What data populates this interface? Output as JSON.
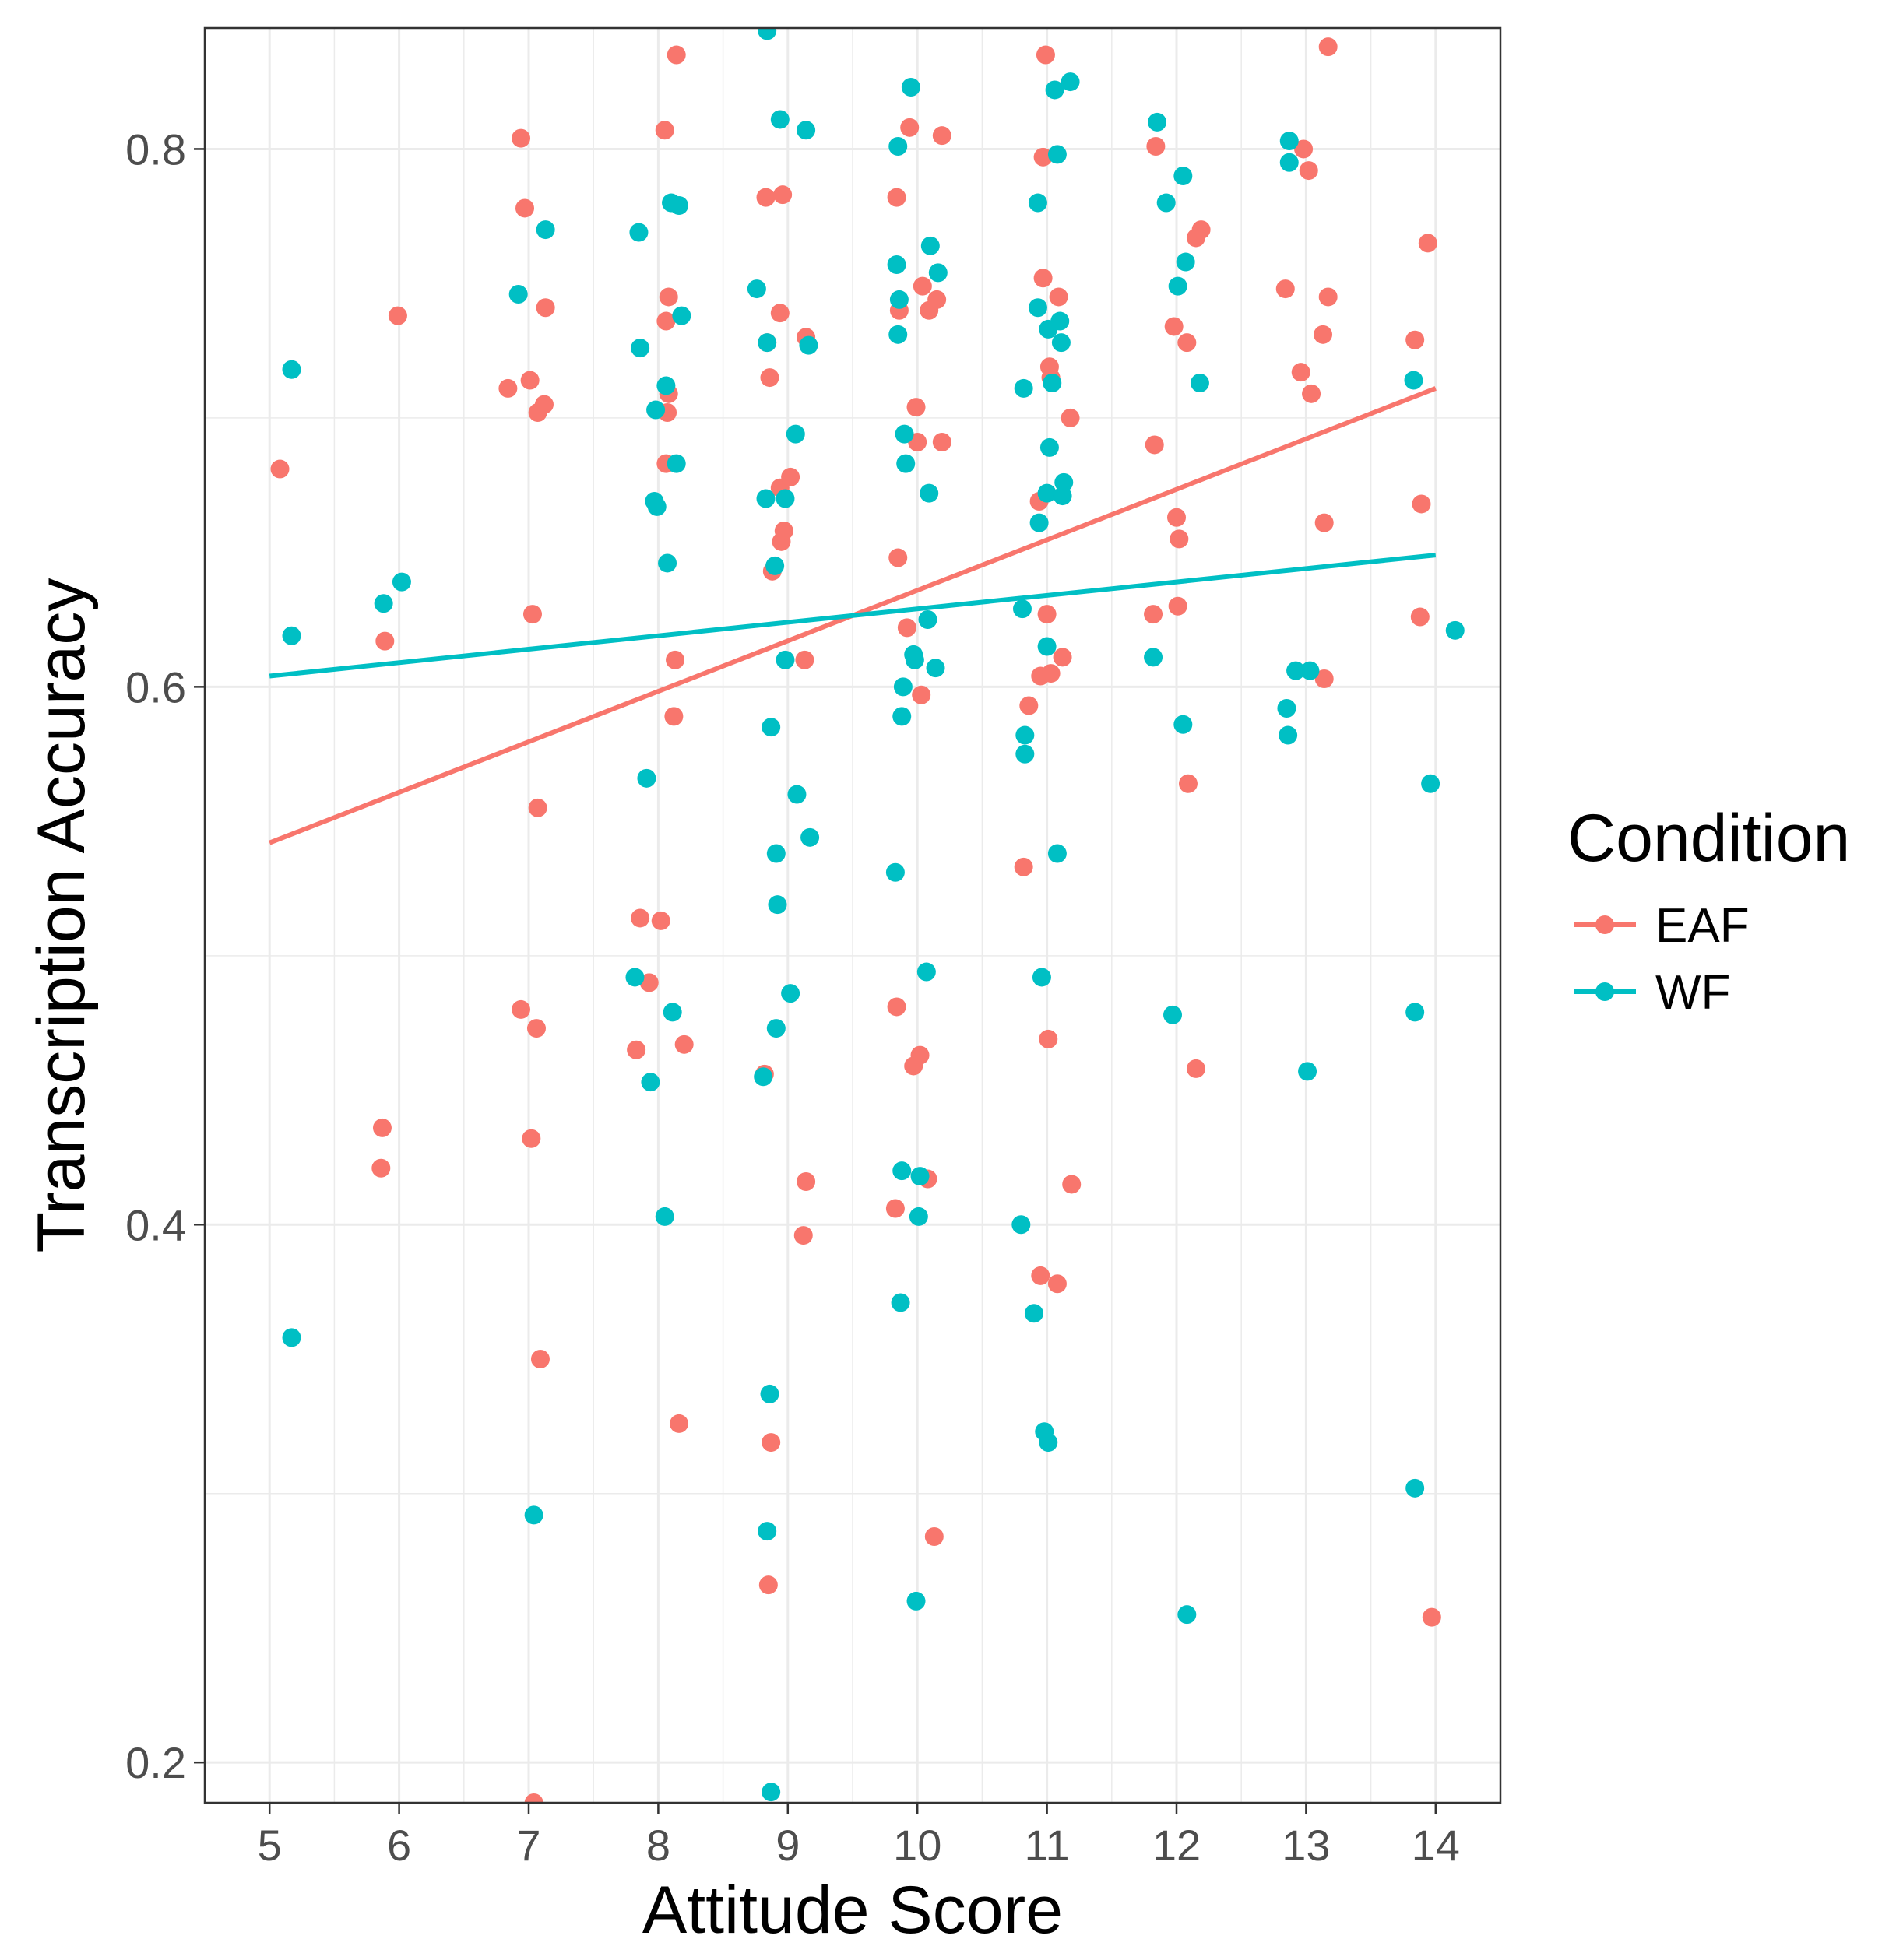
{
  "chart_data": {
    "type": "scatter",
    "title": "",
    "xlabel": "Attitude Score",
    "ylabel": "Transcription Accuracy",
    "xlim": [
      4.5,
      14.5
    ],
    "ylim": [
      0.185,
      0.845
    ],
    "x_ticks": [
      5,
      6,
      7,
      8,
      9,
      10,
      11,
      12,
      13,
      14
    ],
    "x_tick_labels": [
      "5",
      "6",
      "7",
      "8",
      "9",
      "10",
      "11",
      "12",
      "13",
      "14"
    ],
    "y_ticks": [
      0.2,
      0.4,
      0.6,
      0.8
    ],
    "y_tick_labels": [
      "0.2",
      "0.4",
      "0.6",
      "0.8"
    ],
    "grid": true,
    "legend": {
      "title": "Condition",
      "position": "right",
      "entries": [
        {
          "label": "EAF",
          "color": "#F8766D"
        },
        {
          "label": "WF",
          "color": "#00BFC4"
        }
      ]
    },
    "series": [
      {
        "name": "EAF",
        "color": "#F8766D",
        "trend": {
          "x": [
            5,
            14
          ],
          "y": [
            0.542,
            0.711
          ]
        },
        "points": [
          [
            5.08,
            0.681
          ],
          [
            5.86,
            0.421
          ],
          [
            5.87,
            0.436
          ],
          [
            5.89,
            0.617
          ],
          [
            5.99,
            0.738
          ],
          [
            6.84,
            0.711
          ],
          [
            6.94,
            0.48
          ],
          [
            6.94,
            0.804
          ],
          [
            6.97,
            0.778
          ],
          [
            7.01,
            0.714
          ],
          [
            7.02,
            0.432
          ],
          [
            7.03,
            0.627
          ],
          [
            7.04,
            0.185
          ],
          [
            7.06,
            0.473
          ],
          [
            7.07,
            0.702
          ],
          [
            7.07,
            0.555
          ],
          [
            7.09,
            0.35
          ],
          [
            7.12,
            0.705
          ],
          [
            7.13,
            0.741
          ],
          [
            7.83,
            0.465
          ],
          [
            7.86,
            0.514
          ],
          [
            7.93,
            0.49
          ],
          [
            8.02,
            0.513
          ],
          [
            8.05,
            0.807
          ],
          [
            8.06,
            0.683
          ],
          [
            8.06,
            0.736
          ],
          [
            8.07,
            0.702
          ],
          [
            8.08,
            0.709
          ],
          [
            8.08,
            0.745
          ],
          [
            8.12,
            0.589
          ],
          [
            8.13,
            0.61
          ],
          [
            8.14,
            0.835
          ],
          [
            8.16,
            0.326
          ],
          [
            8.2,
            0.467
          ],
          [
            8.82,
            0.456
          ],
          [
            8.83,
            0.782
          ],
          [
            8.84,
            0.728
          ],
          [
            8.85,
            0.266
          ],
          [
            8.86,
            0.715
          ],
          [
            8.87,
            0.319
          ],
          [
            8.88,
            0.643
          ],
          [
            8.94,
            0.674
          ],
          [
            8.94,
            0.739
          ],
          [
            8.95,
            0.654
          ],
          [
            8.96,
            0.783
          ],
          [
            8.97,
            0.658
          ],
          [
            9.02,
            0.678
          ],
          [
            9.12,
            0.396
          ],
          [
            9.13,
            0.61
          ],
          [
            9.14,
            0.416
          ],
          [
            9.14,
            0.73
          ],
          [
            9.83,
            0.406
          ],
          [
            9.84,
            0.782
          ],
          [
            9.84,
            0.481
          ],
          [
            9.85,
            0.648
          ],
          [
            9.86,
            0.74
          ],
          [
            9.92,
            0.622
          ],
          [
            9.94,
            0.808
          ],
          [
            9.97,
            0.459
          ],
          [
            9.99,
            0.704
          ],
          [
            10.0,
            0.691
          ],
          [
            10.02,
            0.463
          ],
          [
            10.03,
            0.597
          ],
          [
            10.04,
            0.749
          ],
          [
            10.08,
            0.417
          ],
          [
            10.09,
            0.74
          ],
          [
            10.13,
            0.284
          ],
          [
            10.15,
            0.744
          ],
          [
            10.19,
            0.691
          ],
          [
            10.19,
            0.805
          ],
          [
            10.82,
            0.533
          ],
          [
            10.86,
            0.593
          ],
          [
            10.94,
            0.669
          ],
          [
            10.95,
            0.604
          ],
          [
            10.95,
            0.381
          ],
          [
            10.97,
            0.797
          ],
          [
            10.97,
            0.752
          ],
          [
            10.99,
            0.835
          ],
          [
            11.0,
            0.627
          ],
          [
            11.01,
            0.469
          ],
          [
            11.02,
            0.719
          ],
          [
            11.03,
            0.605
          ],
          [
            11.03,
            0.715
          ],
          [
            11.08,
            0.378
          ],
          [
            11.09,
            0.745
          ],
          [
            11.12,
            0.611
          ],
          [
            11.18,
            0.7
          ],
          [
            11.19,
            0.415
          ],
          [
            11.82,
            0.627
          ],
          [
            11.83,
            0.69
          ],
          [
            11.84,
            0.801
          ],
          [
            11.98,
            0.734
          ],
          [
            12.0,
            0.663
          ],
          [
            12.01,
            0.63
          ],
          [
            12.02,
            0.655
          ],
          [
            12.08,
            0.728
          ],
          [
            12.09,
            0.564
          ],
          [
            12.15,
            0.458
          ],
          [
            12.15,
            0.767
          ],
          [
            12.19,
            0.77
          ],
          [
            12.84,
            0.748
          ],
          [
            12.96,
            0.717
          ],
          [
            12.98,
            0.8
          ],
          [
            13.02,
            0.792
          ],
          [
            13.04,
            0.709
          ],
          [
            13.13,
            0.731
          ],
          [
            13.14,
            0.661
          ],
          [
            13.14,
            0.603
          ],
          [
            13.17,
            0.838
          ],
          [
            13.17,
            0.745
          ],
          [
            13.84,
            0.729
          ],
          [
            13.88,
            0.626
          ],
          [
            13.89,
            0.668
          ],
          [
            13.94,
            0.765
          ],
          [
            13.97,
            0.254
          ]
        ]
      },
      {
        "name": "WF",
        "color": "#00BFC4",
        "trend": {
          "x": [
            5,
            14
          ],
          "y": [
            0.604,
            0.649
          ]
        },
        "points": [
          [
            5.17,
            0.718
          ],
          [
            5.17,
            0.619
          ],
          [
            5.17,
            0.358
          ],
          [
            5.88,
            0.631
          ],
          [
            6.02,
            0.639
          ],
          [
            6.92,
            0.746
          ],
          [
            7.04,
            0.292
          ],
          [
            7.13,
            0.77
          ],
          [
            7.82,
            0.492
          ],
          [
            7.85,
            0.769
          ],
          [
            7.86,
            0.726
          ],
          [
            7.91,
            0.566
          ],
          [
            7.94,
            0.453
          ],
          [
            7.97,
            0.669
          ],
          [
            7.98,
            0.703
          ],
          [
            7.99,
            0.667
          ],
          [
            8.05,
            0.403
          ],
          [
            8.06,
            0.712
          ],
          [
            8.07,
            0.646
          ],
          [
            8.1,
            0.78
          ],
          [
            8.11,
            0.479
          ],
          [
            8.14,
            0.683
          ],
          [
            8.16,
            0.779
          ],
          [
            8.18,
            0.738
          ],
          [
            8.76,
            0.748
          ],
          [
            8.81,
            0.455
          ],
          [
            8.83,
            0.67
          ],
          [
            8.84,
            0.728
          ],
          [
            8.84,
            0.286
          ],
          [
            8.84,
            0.844
          ],
          [
            8.86,
            0.337
          ],
          [
            8.87,
            0.189
          ],
          [
            8.87,
            0.585
          ],
          [
            8.9,
            0.645
          ],
          [
            8.91,
            0.538
          ],
          [
            8.91,
            0.473
          ],
          [
            8.92,
            0.519
          ],
          [
            8.94,
            0.811
          ],
          [
            8.98,
            0.67
          ],
          [
            8.98,
            0.61
          ],
          [
            9.02,
            0.486
          ],
          [
            9.06,
            0.694
          ],
          [
            9.07,
            0.56
          ],
          [
            9.14,
            0.807
          ],
          [
            9.16,
            0.727
          ],
          [
            9.17,
            0.544
          ],
          [
            9.83,
            0.531
          ],
          [
            9.84,
            0.757
          ],
          [
            9.85,
            0.731
          ],
          [
            9.85,
            0.801
          ],
          [
            9.86,
            0.744
          ],
          [
            9.87,
            0.371
          ],
          [
            9.88,
            0.42
          ],
          [
            9.88,
            0.589
          ],
          [
            9.89,
            0.6
          ],
          [
            9.9,
            0.694
          ],
          [
            9.91,
            0.683
          ],
          [
            9.95,
            0.823
          ],
          [
            9.97,
            0.612
          ],
          [
            9.98,
            0.61
          ],
          [
            9.99,
            0.26
          ],
          [
            10.01,
            0.403
          ],
          [
            10.02,
            0.418
          ],
          [
            10.07,
            0.494
          ],
          [
            10.08,
            0.625
          ],
          [
            10.09,
            0.672
          ],
          [
            10.1,
            0.764
          ],
          [
            10.14,
            0.607
          ],
          [
            10.16,
            0.754
          ],
          [
            10.8,
            0.4
          ],
          [
            10.81,
            0.629
          ],
          [
            10.82,
            0.711
          ],
          [
            10.83,
            0.582
          ],
          [
            10.83,
            0.575
          ],
          [
            10.9,
            0.367
          ],
          [
            10.93,
            0.741
          ],
          [
            10.93,
            0.78
          ],
          [
            10.94,
            0.661
          ],
          [
            10.96,
            0.492
          ],
          [
            10.98,
            0.323
          ],
          [
            11.0,
            0.672
          ],
          [
            11.0,
            0.615
          ],
          [
            11.01,
            0.733
          ],
          [
            11.01,
            0.319
          ],
          [
            11.02,
            0.689
          ],
          [
            11.04,
            0.713
          ],
          [
            11.06,
            0.822
          ],
          [
            11.08,
            0.798
          ],
          [
            11.08,
            0.538
          ],
          [
            11.1,
            0.736
          ],
          [
            11.11,
            0.728
          ],
          [
            11.12,
            0.671
          ],
          [
            11.13,
            0.676
          ],
          [
            11.18,
            0.825
          ],
          [
            11.82,
            0.611
          ],
          [
            11.85,
            0.81
          ],
          [
            11.92,
            0.78
          ],
          [
            11.97,
            0.478
          ],
          [
            12.01,
            0.749
          ],
          [
            12.05,
            0.586
          ],
          [
            12.05,
            0.79
          ],
          [
            12.07,
            0.758
          ],
          [
            12.08,
            0.255
          ],
          [
            12.18,
            0.713
          ],
          [
            12.85,
            0.592
          ],
          [
            12.86,
            0.582
          ],
          [
            12.87,
            0.795
          ],
          [
            12.87,
            0.803
          ],
          [
            12.92,
            0.606
          ],
          [
            13.01,
            0.457
          ],
          [
            13.03,
            0.606
          ],
          [
            13.83,
            0.714
          ],
          [
            13.84,
            0.302
          ],
          [
            13.84,
            0.479
          ],
          [
            13.96,
            0.564
          ],
          [
            14.15,
            0.621
          ]
        ]
      }
    ]
  }
}
